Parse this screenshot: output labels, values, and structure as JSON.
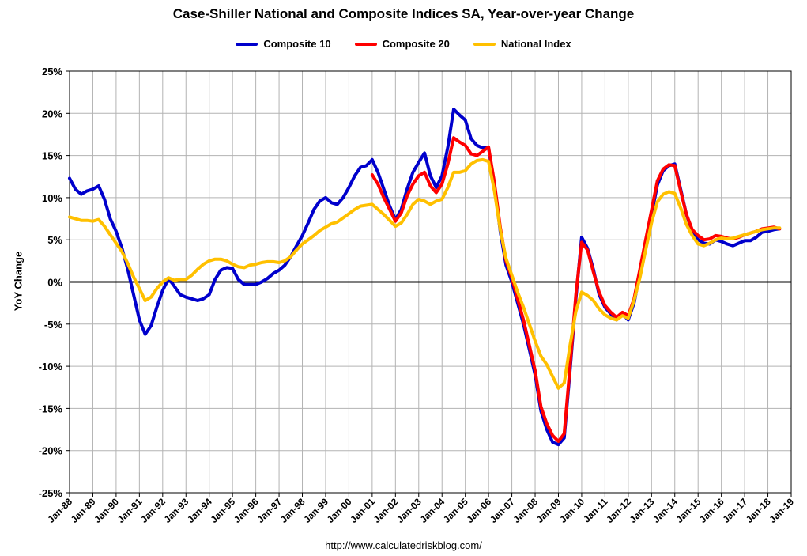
{
  "page": {
    "footer": "http://www.calculatedriskblog.com/"
  },
  "chart_data": {
    "type": "line",
    "title": "Case-Shiller National and Composite Indices SA, Year-over-year Change",
    "xlabel": "",
    "ylabel": "YoY Change",
    "xlim": [
      1988,
      2019
    ],
    "ylim": [
      -25,
      25
    ],
    "grid": true,
    "legend_position": "top",
    "y_ticks": [
      25,
      20,
      15,
      10,
      5,
      0,
      -5,
      -10,
      -15,
      -20,
      -25
    ],
    "y_tick_labels": [
      "25%",
      "20%",
      "15%",
      "10%",
      "5%",
      "0%",
      "-5%",
      "-10%",
      "-15%",
      "-20%",
      "-25%"
    ],
    "x_tick_years": [
      1988,
      1989,
      1990,
      1991,
      1992,
      1993,
      1994,
      1995,
      1996,
      1997,
      1998,
      1999,
      2000,
      2001,
      2002,
      2003,
      2004,
      2005,
      2006,
      2007,
      2008,
      2009,
      2010,
      2011,
      2012,
      2013,
      2014,
      2015,
      2016,
      2017,
      2018,
      2019
    ],
    "x_tick_labels": [
      "Jan-88",
      "Jan-89",
      "Jan-90",
      "Jan-91",
      "Jan-92",
      "Jan-93",
      "Jan-94",
      "Jan-95",
      "Jan-96",
      "Jan-97",
      "Jan-98",
      "Jan-99",
      "Jan-00",
      "Jan-01",
      "Jan-02",
      "Jan-03",
      "Jan-04",
      "Jan-05",
      "Jan-06",
      "Jan-07",
      "Jan-08",
      "Jan-09",
      "Jan-10",
      "Jan-11",
      "Jan-12",
      "Jan-13",
      "Jan-14",
      "Jan-15",
      "Jan-16",
      "Jan-17",
      "Jan-18",
      "Jan-19"
    ],
    "series": [
      {
        "name": "Composite 10",
        "color": "#0000CC",
        "x_start": 1988.0,
        "x_step": 0.25,
        "values": [
          12.3,
          11.0,
          10.4,
          10.8,
          11.0,
          11.4,
          9.8,
          7.5,
          6.0,
          4.0,
          1.5,
          -1.5,
          -4.5,
          -6.2,
          -5.2,
          -3.0,
          -1.0,
          0.4,
          -0.5,
          -1.5,
          -1.8,
          -2.0,
          -2.2,
          -2.0,
          -1.5,
          0.3,
          1.4,
          1.7,
          1.6,
          0.3,
          -0.3,
          -0.3,
          -0.3,
          0.0,
          0.4,
          1.0,
          1.4,
          2.0,
          3.0,
          4.3,
          5.5,
          7.0,
          8.6,
          9.6,
          10.0,
          9.4,
          9.2,
          10.0,
          11.2,
          12.6,
          13.6,
          13.8,
          14.5,
          13.0,
          11.0,
          9.0,
          7.4,
          8.6,
          11.0,
          13.0,
          14.2,
          15.3,
          12.6,
          11.2,
          12.6,
          16.0,
          20.5,
          19.8,
          19.2,
          17.0,
          16.2,
          15.9,
          15.9,
          11.5,
          6.0,
          2.0,
          0.0,
          -2.5,
          -5.0,
          -8.0,
          -11.0,
          -15.3,
          -17.5,
          -19.0,
          -19.3,
          -18.5,
          -10.5,
          -2.0,
          5.3,
          4.0,
          1.5,
          -1.5,
          -3.0,
          -3.8,
          -4.5,
          -3.8,
          -4.5,
          -2.5,
          1.0,
          4.5,
          8.0,
          11.5,
          13.2,
          13.8,
          14.0,
          11.0,
          8.0,
          6.0,
          5.0,
          4.6,
          4.5,
          5.0,
          4.8,
          4.5,
          4.3,
          4.6,
          4.9,
          4.9,
          5.3,
          5.9,
          6.0,
          6.2,
          6.3
        ]
      },
      {
        "name": "Composite 20",
        "color": "#FF0000",
        "x_start": 2001.0,
        "x_step": 0.25,
        "values": [
          12.7,
          11.6,
          10.0,
          8.6,
          7.2,
          8.2,
          10.2,
          11.6,
          12.6,
          13.0,
          11.4,
          10.6,
          11.6,
          14.0,
          17.1,
          16.6,
          16.2,
          15.2,
          15.0,
          15.5,
          16.0,
          11.8,
          6.5,
          2.5,
          0.5,
          -2.0,
          -4.5,
          -7.5,
          -10.5,
          -14.8,
          -16.8,
          -18.2,
          -18.9,
          -18.0,
          -10.0,
          -1.5,
          4.7,
          3.8,
          1.2,
          -1.2,
          -2.8,
          -3.6,
          -4.2,
          -3.6,
          -4.0,
          -2.0,
          1.5,
          5.0,
          8.5,
          12.0,
          13.4,
          13.9,
          13.8,
          10.8,
          8.0,
          6.2,
          5.5,
          5.0,
          5.1,
          5.5,
          5.4,
          5.2,
          5.1,
          5.3,
          5.6,
          5.8,
          6.0,
          6.3,
          6.4,
          6.5,
          6.3
        ]
      },
      {
        "name": "National Index",
        "color": "#FFC000",
        "x_start": 1988.0,
        "x_step": 0.25,
        "values": [
          7.7,
          7.5,
          7.3,
          7.3,
          7.2,
          7.4,
          6.6,
          5.6,
          4.6,
          3.6,
          2.2,
          0.6,
          -0.8,
          -2.2,
          -1.8,
          -0.8,
          0.0,
          0.5,
          0.2,
          0.3,
          0.3,
          0.8,
          1.5,
          2.1,
          2.5,
          2.7,
          2.7,
          2.5,
          2.1,
          1.8,
          1.7,
          2.0,
          2.1,
          2.3,
          2.4,
          2.4,
          2.3,
          2.5,
          3.0,
          3.8,
          4.5,
          5.0,
          5.5,
          6.1,
          6.5,
          6.9,
          7.1,
          7.6,
          8.1,
          8.6,
          9.0,
          9.1,
          9.2,
          8.6,
          8.0,
          7.3,
          6.6,
          7.0,
          8.0,
          9.2,
          9.8,
          9.6,
          9.2,
          9.6,
          9.8,
          11.2,
          13.0,
          13.0,
          13.2,
          14.0,
          14.4,
          14.5,
          14.3,
          10.8,
          6.2,
          2.8,
          0.8,
          -1.2,
          -3.0,
          -5.0,
          -7.0,
          -8.8,
          -9.8,
          -11.2,
          -12.6,
          -12.0,
          -7.5,
          -3.5,
          -1.2,
          -1.6,
          -2.2,
          -3.2,
          -3.9,
          -4.3,
          -4.5,
          -4.0,
          -4.3,
          -2.2,
          0.5,
          3.8,
          7.0,
          9.5,
          10.4,
          10.7,
          10.5,
          8.8,
          6.8,
          5.5,
          4.5,
          4.3,
          4.6,
          5.0,
          5.2,
          5.1,
          5.2,
          5.4,
          5.6,
          5.8,
          6.0,
          6.2,
          6.3,
          6.4,
          6.4
        ]
      }
    ]
  }
}
